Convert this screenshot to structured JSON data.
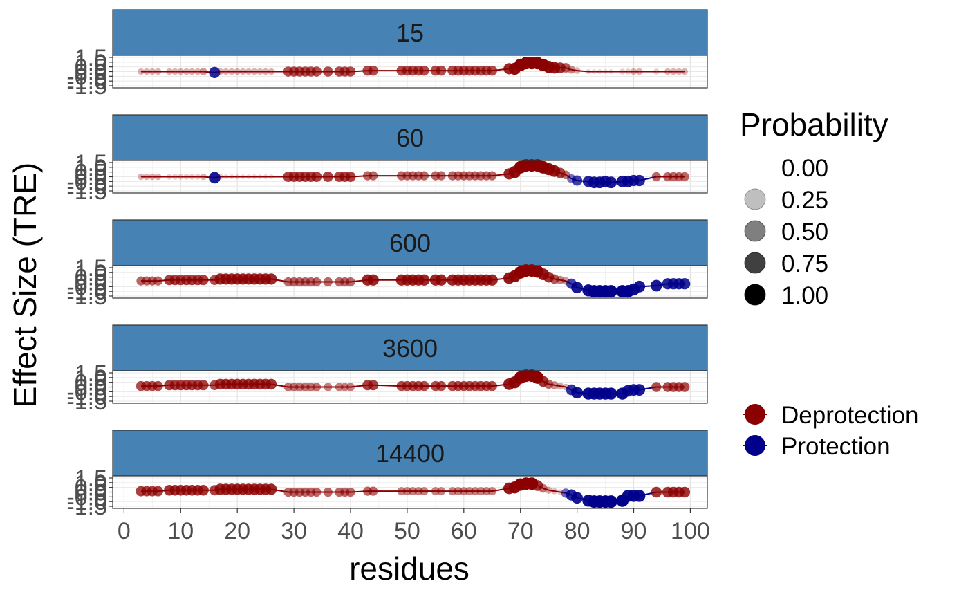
{
  "chart_data": {
    "type": "scatter",
    "xlabel": "residues",
    "ylabel": "Effect Size (TRE)",
    "xlim": [
      -2,
      103
    ],
    "ylim": [
      -1.5,
      1.5
    ],
    "x_ticks": [
      0,
      10,
      20,
      30,
      40,
      50,
      60,
      70,
      80,
      90,
      100
    ],
    "y_ticks": [
      -1.5,
      -1.0,
      -0.5,
      0.0,
      0.5,
      1.0,
      1.5
    ],
    "y_tick_labels": [
      "-1.5",
      "-1.0",
      "-0.5",
      "0.0",
      "0.5",
      "1.0",
      "1.5"
    ],
    "strip_color": "#4682B4",
    "colors": {
      "Deprotection": "#8B0000",
      "Protection": "#00008B"
    },
    "legend": {
      "probability_title": "Probability",
      "probability_levels": [
        0.0,
        0.25,
        0.5,
        0.75,
        1.0
      ],
      "probability_labels": [
        "0.00",
        "0.25",
        "0.50",
        "0.75",
        "1.00"
      ],
      "type_entries": [
        "Deprotection",
        "Protection"
      ]
    },
    "residues": [
      3,
      4,
      5,
      6,
      8,
      9,
      10,
      11,
      12,
      13,
      14,
      16,
      17,
      18,
      19,
      20,
      21,
      22,
      23,
      24,
      25,
      26,
      29,
      30,
      31,
      32,
      33,
      34,
      36,
      38,
      39,
      40,
      43,
      44,
      49,
      50,
      51,
      52,
      53,
      55,
      56,
      58,
      59,
      60,
      61,
      62,
      63,
      64,
      65,
      68,
      69,
      70,
      71,
      72,
      73,
      74,
      75,
      76,
      77,
      78,
      79,
      80,
      82,
      83,
      84,
      85,
      86,
      88,
      89,
      90,
      91,
      94,
      96,
      97,
      98,
      99
    ],
    "facets": [
      {
        "label": "15",
        "effect": [
          0,
          0,
          0,
          0,
          0,
          0,
          0,
          0,
          0,
          0,
          0,
          -0.1,
          0,
          0,
          0,
          0,
          0,
          0,
          0,
          0,
          0,
          0,
          0,
          0,
          0,
          0,
          0,
          0,
          0,
          0,
          0,
          0,
          0.1,
          0.1,
          0.1,
          0.1,
          0.1,
          0.1,
          0.1,
          0.1,
          0.1,
          0.1,
          0.1,
          0.1,
          0.1,
          0.1,
          0.1,
          0.1,
          0.1,
          0.3,
          0.3,
          0.7,
          0.9,
          0.9,
          0.9,
          0.7,
          0.5,
          0.4,
          0.4,
          0.4,
          0.2,
          0.1,
          0,
          0,
          0,
          0,
          0,
          0,
          0,
          0,
          0,
          0,
          0,
          0,
          0,
          0
        ],
        "prob": [
          0.3,
          0.3,
          0.3,
          0.3,
          0.3,
          0.3,
          0.3,
          0.3,
          0.3,
          0.3,
          0.4,
          0.85,
          0.3,
          0.3,
          0.3,
          0.3,
          0.3,
          0.3,
          0.3,
          0.3,
          0.3,
          0.3,
          0.7,
          0.7,
          0.7,
          0.7,
          0.7,
          0.7,
          0.7,
          0.7,
          0.7,
          0.7,
          0.7,
          0.7,
          0.7,
          0.7,
          0.7,
          0.7,
          0.7,
          0.7,
          0.7,
          0.7,
          0.7,
          0.7,
          0.7,
          0.7,
          0.7,
          0.7,
          0.7,
          0.85,
          0.95,
          1,
          1,
          1,
          1,
          1,
          0.95,
          0.9,
          0.8,
          0.65,
          0.45,
          0.3,
          0.15,
          0.1,
          0.1,
          0.1,
          0.1,
          0.2,
          0.2,
          0.3,
          0.3,
          0.2,
          0.3,
          0.3,
          0.3,
          0.3
        ]
      },
      {
        "label": "60",
        "effect": [
          0,
          0,
          0,
          0,
          0,
          0,
          0,
          0,
          0,
          0,
          0,
          -0.1,
          0,
          0,
          0,
          0,
          0,
          0,
          0,
          0,
          0,
          0,
          0,
          0,
          0,
          0,
          0,
          0,
          0,
          0,
          0,
          0,
          0.1,
          0.1,
          0.1,
          0.1,
          0.1,
          0.1,
          0.1,
          0.1,
          0.1,
          0.1,
          0.1,
          0.1,
          0.1,
          0.1,
          0.1,
          0.1,
          0.1,
          0.3,
          0.5,
          1.0,
          1.2,
          1.2,
          1.2,
          1.0,
          0.8,
          0.6,
          0.4,
          0.2,
          -0.2,
          -0.4,
          -0.5,
          -0.6,
          -0.6,
          -0.5,
          -0.6,
          -0.5,
          -0.5,
          -0.4,
          -0.4,
          0,
          0,
          0,
          0,
          0
        ],
        "prob": [
          0.3,
          0.3,
          0.3,
          0.3,
          0.2,
          0.2,
          0.2,
          0.2,
          0.2,
          0.2,
          0.3,
          0.9,
          0.2,
          0.1,
          0.1,
          0.1,
          0.1,
          0.1,
          0.1,
          0.1,
          0.1,
          0.1,
          0.75,
          0.75,
          0.75,
          0.75,
          0.75,
          0.75,
          0.75,
          0.75,
          0.75,
          0.75,
          0.6,
          0.6,
          0.6,
          0.6,
          0.6,
          0.6,
          0.6,
          0.6,
          0.6,
          0.6,
          0.6,
          0.6,
          0.6,
          0.6,
          0.6,
          0.6,
          0.6,
          0.85,
          0.95,
          1,
          1,
          1,
          1,
          1,
          0.95,
          0.9,
          0.75,
          0.55,
          0.55,
          0.75,
          0.85,
          0.9,
          0.9,
          0.9,
          0.9,
          0.9,
          0.9,
          0.85,
          0.85,
          0.6,
          0.6,
          0.6,
          0.6,
          0.6
        ]
      },
      {
        "label": "600",
        "effect": [
          0.1,
          0.1,
          0.1,
          0.1,
          0.2,
          0.2,
          0.2,
          0.2,
          0.2,
          0.2,
          0.2,
          0.2,
          0.3,
          0.3,
          0.3,
          0.3,
          0.3,
          0.3,
          0.3,
          0.3,
          0.3,
          0.3,
          0,
          0,
          0,
          0,
          0,
          0,
          0,
          0,
          0,
          0,
          0.2,
          0.2,
          0.2,
          0.2,
          0.2,
          0.2,
          0.2,
          0.2,
          0.2,
          0.2,
          0.2,
          0.2,
          0.2,
          0.2,
          0.2,
          0.2,
          0.2,
          0.4,
          0.6,
          1.0,
          1.2,
          1.2,
          1.1,
          0.8,
          0.5,
          0.3,
          0.2,
          0.1,
          -0.2,
          -0.6,
          -0.9,
          -1.0,
          -1.0,
          -1.0,
          -1.0,
          -1.0,
          -1.0,
          -0.8,
          -0.5,
          -0.4,
          -0.2,
          -0.2,
          -0.2,
          -0.2
        ],
        "prob": [
          0.6,
          0.6,
          0.6,
          0.6,
          0.75,
          0.75,
          0.75,
          0.75,
          0.75,
          0.75,
          0.75,
          0.7,
          0.85,
          0.85,
          0.85,
          0.85,
          0.85,
          0.85,
          0.85,
          0.85,
          0.85,
          0.85,
          0.6,
          0.6,
          0.6,
          0.6,
          0.6,
          0.6,
          0.6,
          0.6,
          0.6,
          0.6,
          0.85,
          0.85,
          0.85,
          0.85,
          0.85,
          0.85,
          0.85,
          0.85,
          0.85,
          0.85,
          0.85,
          0.85,
          0.85,
          0.85,
          0.85,
          0.85,
          0.85,
          0.9,
          0.95,
          1,
          1,
          1,
          1,
          0.9,
          0.8,
          0.65,
          0.5,
          0.4,
          0.75,
          0.9,
          0.95,
          1,
          1,
          1,
          1,
          1,
          1,
          0.95,
          0.9,
          0.9,
          0.85,
          0.85,
          0.85,
          0.85
        ]
      },
      {
        "label": "3600",
        "effect": [
          0.1,
          0.1,
          0.1,
          0.1,
          0.2,
          0.2,
          0.2,
          0.2,
          0.2,
          0.2,
          0.2,
          0.2,
          0.3,
          0.3,
          0.3,
          0.3,
          0.3,
          0.3,
          0.3,
          0.3,
          0.3,
          0.3,
          0,
          0,
          0,
          0,
          0,
          0,
          0,
          0,
          0,
          0,
          0.2,
          0.2,
          0.1,
          0.1,
          0.1,
          0.1,
          0.1,
          0.1,
          0.1,
          0.1,
          0.1,
          0.1,
          0.1,
          0.1,
          0.1,
          0.1,
          0.1,
          0.3,
          0.5,
          1.0,
          1.2,
          1.2,
          1.0,
          0.6,
          0.3,
          0.2,
          0.1,
          0,
          -0.3,
          -0.6,
          -0.7,
          -0.7,
          -0.7,
          -0.7,
          -0.7,
          -0.7,
          -0.4,
          -0.3,
          -0.3,
          0,
          0,
          0,
          0,
          0
        ],
        "prob": [
          0.7,
          0.7,
          0.7,
          0.7,
          0.75,
          0.75,
          0.75,
          0.75,
          0.75,
          0.75,
          0.75,
          0.7,
          0.8,
          0.8,
          0.8,
          0.8,
          0.8,
          0.8,
          0.8,
          0.8,
          0.8,
          0.8,
          0.55,
          0.55,
          0.55,
          0.55,
          0.55,
          0.55,
          0.5,
          0.5,
          0.5,
          0.5,
          0.75,
          0.75,
          0.7,
          0.7,
          0.7,
          0.7,
          0.7,
          0.7,
          0.7,
          0.7,
          0.7,
          0.7,
          0.7,
          0.7,
          0.7,
          0.7,
          0.7,
          0.9,
          0.95,
          1,
          1,
          1,
          1,
          0.8,
          0.6,
          0.45,
          0.35,
          0.3,
          0.8,
          0.9,
          0.95,
          0.95,
          0.95,
          0.95,
          0.95,
          0.95,
          0.9,
          0.9,
          0.9,
          0.7,
          0.7,
          0.7,
          0.7,
          0.7
        ]
      },
      {
        "label": "14400",
        "effect": [
          0.1,
          0.1,
          0.1,
          0.1,
          0.2,
          0.2,
          0.2,
          0.2,
          0.2,
          0.2,
          0.2,
          0.2,
          0.3,
          0.3,
          0.3,
          0.3,
          0.3,
          0.3,
          0.3,
          0.3,
          0.3,
          0.3,
          0,
          0,
          0,
          0,
          0,
          0,
          0,
          0,
          0,
          0,
          0.1,
          0.1,
          0.1,
          0.1,
          0.1,
          0.1,
          0.1,
          0.1,
          0.1,
          0.1,
          0.1,
          0.1,
          0.1,
          0.1,
          0.1,
          0.1,
          0.1,
          0.4,
          0.5,
          0.8,
          0.9,
          0.9,
          0.7,
          0.4,
          0.2,
          0.1,
          0,
          -0.1,
          -0.3,
          -0.6,
          -0.9,
          -1.0,
          -1.0,
          -1.0,
          -1.0,
          -0.9,
          -0.4,
          -0.4,
          -0.4,
          0,
          0,
          0,
          0,
          0
        ],
        "prob": [
          0.75,
          0.75,
          0.75,
          0.75,
          0.8,
          0.8,
          0.8,
          0.8,
          0.8,
          0.8,
          0.8,
          0.75,
          0.85,
          0.85,
          0.85,
          0.85,
          0.85,
          0.85,
          0.85,
          0.85,
          0.85,
          0.85,
          0.6,
          0.6,
          0.6,
          0.6,
          0.6,
          0.6,
          0.6,
          0.6,
          0.6,
          0.6,
          0.6,
          0.6,
          0.5,
          0.5,
          0.5,
          0.5,
          0.5,
          0.5,
          0.5,
          0.5,
          0.5,
          0.5,
          0.5,
          0.5,
          0.5,
          0.5,
          0.5,
          0.9,
          0.95,
          1,
          1,
          1,
          0.8,
          0.55,
          0.35,
          0.25,
          0.2,
          0.6,
          0.85,
          0.9,
          0.95,
          1,
          1,
          1,
          1,
          1,
          0.95,
          0.95,
          0.95,
          0.8,
          0.8,
          0.8,
          0.8,
          0.8
        ]
      }
    ]
  }
}
